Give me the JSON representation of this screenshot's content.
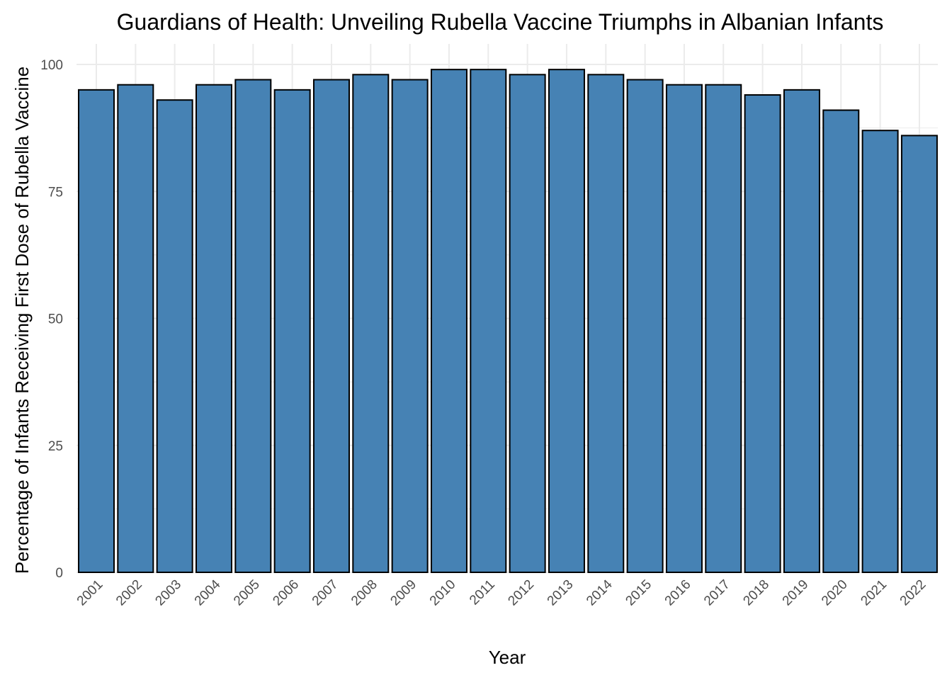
{
  "chart_data": {
    "type": "bar",
    "title": "Guardians of Health: Unveiling Rubella Vaccine Triumphs in Albanian Infants",
    "xlabel": "Year",
    "ylabel": "Percentage of Infants Receiving First Dose of Rubella Vaccine",
    "categories": [
      "2001",
      "2002",
      "2003",
      "2004",
      "2005",
      "2006",
      "2007",
      "2008",
      "2009",
      "2010",
      "2011",
      "2012",
      "2013",
      "2014",
      "2015",
      "2016",
      "2017",
      "2018",
      "2019",
      "2020",
      "2021",
      "2022"
    ],
    "values": [
      95,
      96,
      93,
      96,
      97,
      95,
      97,
      98,
      97,
      99,
      99,
      98,
      99,
      98,
      97,
      96,
      96,
      94,
      95,
      91,
      87,
      86
    ],
    "ylim": [
      0,
      100
    ],
    "yticks": [
      0,
      25,
      50,
      75,
      100
    ],
    "grid": true,
    "legend": "none",
    "bar_color": "#4682b4",
    "bar_outline": "#000000"
  }
}
